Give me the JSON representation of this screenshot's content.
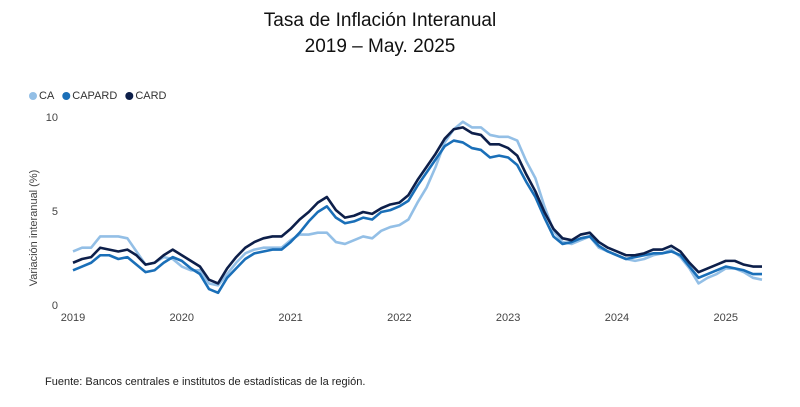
{
  "chart_data": {
    "type": "line",
    "title": "Tasa de Inflación Interanual",
    "subtitle": "2019 – May. 2025",
    "y_label": "Variación interanual (%)",
    "source": "Fuente: Bancos centrales e institutos de estadísticas de la región.",
    "categories": [
      "2019",
      null,
      null,
      null,
      null,
      null,
      null,
      null,
      null,
      null,
      null,
      null,
      "2020",
      null,
      null,
      null,
      null,
      null,
      null,
      null,
      null,
      null,
      null,
      null,
      "2021",
      null,
      null,
      null,
      null,
      null,
      null,
      null,
      null,
      null,
      null,
      null,
      "2022",
      null,
      null,
      null,
      null,
      null,
      null,
      null,
      null,
      null,
      null,
      null,
      "2023",
      null,
      null,
      null,
      null,
      null,
      null,
      null,
      null,
      null,
      null,
      null,
      "2024",
      null,
      null,
      null,
      null,
      null,
      null,
      null,
      null,
      null,
      null,
      null,
      "2025",
      null,
      null,
      null,
      null
    ],
    "series": [
      {
        "name": "CA",
        "color": "#93bfe6",
        "values": [
          2.9,
          3.1,
          3.1,
          3.7,
          3.7,
          3.7,
          3.6,
          2.9,
          2.2,
          2.3,
          2.6,
          2.5,
          2.1,
          1.9,
          1.9,
          1.2,
          1.1,
          1.7,
          2.3,
          2.8,
          3.0,
          3.1,
          3.1,
          3.1,
          3.5,
          3.8,
          3.8,
          3.9,
          3.9,
          3.4,
          3.3,
          3.5,
          3.7,
          3.6,
          4.0,
          4.2,
          4.3,
          4.6,
          5.5,
          6.3,
          7.4,
          8.7,
          9.4,
          9.8,
          9.5,
          9.5,
          9.1,
          9.0,
          9.0,
          8.8,
          7.7,
          6.8,
          5.3,
          4.0,
          3.4,
          3.3,
          3.5,
          3.7,
          3.1,
          2.9,
          2.7,
          2.5,
          2.4,
          2.5,
          2.7,
          2.8,
          3.0,
          2.6,
          2.0,
          1.2,
          1.5,
          1.7,
          2.0,
          2.0,
          1.8,
          1.5,
          1.4
        ]
      },
      {
        "name": "CAPARD",
        "color": "#1a6fb8",
        "values": [
          1.9,
          2.1,
          2.3,
          2.7,
          2.7,
          2.5,
          2.6,
          2.2,
          1.8,
          1.9,
          2.3,
          2.6,
          2.4,
          2.0,
          1.7,
          0.9,
          0.7,
          1.5,
          2.0,
          2.5,
          2.8,
          2.9,
          3.0,
          3.0,
          3.4,
          3.9,
          4.5,
          5.0,
          5.3,
          4.7,
          4.4,
          4.5,
          4.7,
          4.6,
          5.0,
          5.1,
          5.3,
          5.6,
          6.4,
          7.1,
          7.8,
          8.5,
          8.8,
          8.7,
          8.4,
          8.3,
          7.9,
          8.0,
          7.9,
          7.5,
          6.6,
          5.8,
          4.7,
          3.7,
          3.3,
          3.4,
          3.6,
          3.7,
          3.2,
          2.9,
          2.7,
          2.5,
          2.6,
          2.7,
          2.8,
          2.8,
          2.9,
          2.7,
          2.1,
          1.5,
          1.7,
          1.9,
          2.1,
          2.0,
          1.9,
          1.7,
          1.7
        ]
      },
      {
        "name": "CARD",
        "color": "#0d1f4a",
        "values": [
          2.3,
          2.5,
          2.6,
          3.1,
          3.0,
          2.9,
          3.0,
          2.7,
          2.2,
          2.3,
          2.7,
          3.0,
          2.7,
          2.4,
          2.1,
          1.4,
          1.2,
          2.0,
          2.6,
          3.1,
          3.4,
          3.6,
          3.7,
          3.7,
          4.1,
          4.6,
          5.0,
          5.5,
          5.8,
          5.1,
          4.7,
          4.8,
          5.0,
          4.9,
          5.2,
          5.4,
          5.5,
          5.9,
          6.7,
          7.4,
          8.1,
          8.9,
          9.4,
          9.5,
          9.2,
          9.1,
          8.6,
          8.6,
          8.4,
          8.0,
          7.0,
          6.1,
          5.0,
          4.1,
          3.6,
          3.5,
          3.8,
          3.9,
          3.4,
          3.1,
          2.9,
          2.7,
          2.7,
          2.8,
          3.0,
          3.0,
          3.2,
          2.9,
          2.3,
          1.8,
          2.0,
          2.2,
          2.4,
          2.4,
          2.2,
          2.1,
          2.1
        ]
      }
    ],
    "ylim": [
      0,
      10
    ],
    "yticks": [
      0,
      5,
      10
    ],
    "grid": false
  }
}
